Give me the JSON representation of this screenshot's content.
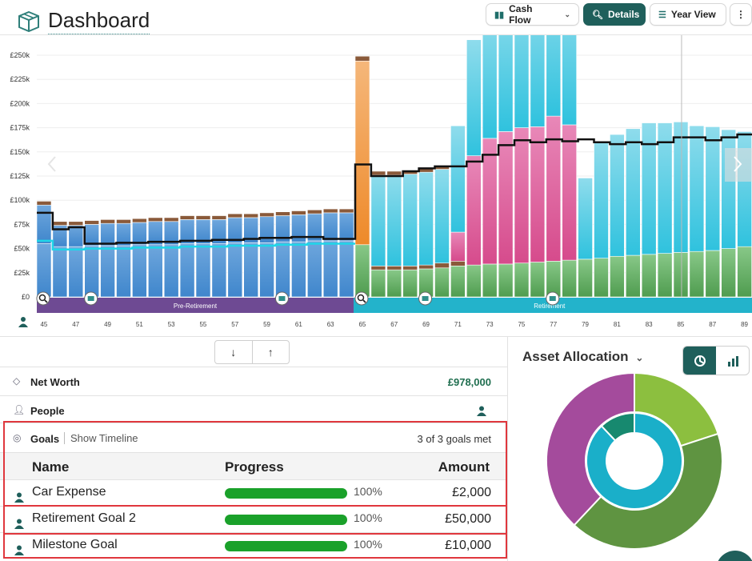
{
  "header": {
    "title": "Dashboard",
    "buttons": {
      "cash_flow": "Cash Flow",
      "details": "Details",
      "year_view": "Year View",
      "more": "⋮"
    }
  },
  "chart_data": {
    "type": "bar",
    "y_ticks": [
      "£0",
      "£25k",
      "£50k",
      "£75k",
      "£100k",
      "£125k",
      "£150k",
      "£175k",
      "£200k",
      "£225k",
      "£250k"
    ],
    "ylim": [
      0,
      250000
    ],
    "x_ticks": [
      "45",
      "47",
      "49",
      "51",
      "53",
      "55",
      "57",
      "59",
      "61",
      "63",
      "65",
      "67",
      "69",
      "71",
      "73",
      "75",
      "77",
      "79",
      "81",
      "83",
      "85",
      "87",
      "89"
    ],
    "ages": [
      45,
      46,
      47,
      48,
      49,
      50,
      51,
      52,
      53,
      54,
      55,
      56,
      57,
      58,
      59,
      60,
      61,
      62,
      63,
      64,
      65,
      66,
      67,
      68,
      69,
      70,
      71,
      72,
      73,
      74,
      75,
      76,
      77,
      78,
      79,
      80,
      81,
      82,
      83,
      84,
      85,
      86,
      87,
      88,
      89
    ],
    "series": [
      {
        "values": [
          55,
          52,
          52,
          53,
          53,
          53,
          54,
          54,
          54,
          55,
          55,
          55,
          56,
          56,
          56,
          57,
          57,
          58,
          58,
          58,
          54,
          28,
          28,
          28,
          29,
          30,
          32,
          33,
          34,
          34,
          35,
          36,
          37,
          38,
          39,
          40,
          42,
          43,
          44,
          45,
          46,
          47,
          48,
          50,
          52
        ]
      },
      {
        "values": [
          40,
          22,
          22,
          22,
          23,
          23,
          23,
          24,
          24,
          25,
          25,
          25,
          26,
          26,
          27,
          27,
          28,
          28,
          29,
          29,
          190,
          94,
          94,
          95,
          96,
          97,
          110,
          120,
          130,
          135,
          135,
          135,
          135,
          135,
          84,
          120,
          126,
          131,
          136,
          135,
          135,
          130,
          128,
          123,
          119
        ]
      },
      {
        "values": [
          0,
          0,
          0,
          0,
          0,
          0,
          0,
          0,
          0,
          0,
          0,
          0,
          0,
          0,
          0,
          0,
          0,
          0,
          0,
          0,
          0,
          4,
          4,
          4,
          4,
          5,
          5,
          0,
          0,
          0,
          0,
          0,
          0,
          0,
          0,
          0,
          0,
          0,
          0,
          0,
          0,
          0,
          0,
          0,
          0
        ]
      },
      {
        "values": [
          0,
          0,
          0,
          0,
          0,
          0,
          0,
          0,
          0,
          0,
          0,
          0,
          0,
          0,
          0,
          0,
          0,
          0,
          0,
          0,
          0,
          0,
          0,
          0,
          0,
          0,
          30,
          113,
          130,
          137,
          140,
          140,
          150,
          140,
          0,
          0,
          0,
          0,
          0,
          0,
          0,
          0,
          0,
          0,
          0
        ]
      },
      {
        "values": [
          4,
          4,
          4,
          4,
          4,
          4,
          4,
          4,
          4,
          4,
          4,
          4,
          4,
          4,
          4,
          4,
          4,
          4,
          4,
          4,
          5,
          4,
          4,
          4,
          4,
          4,
          0,
          0,
          0,
          0,
          0,
          0,
          0,
          0,
          0,
          0,
          0,
          0,
          0,
          0,
          0,
          0,
          0,
          0,
          0
        ]
      },
      {
        "values": [
          87,
          70,
          72,
          55,
          55,
          56,
          56,
          57,
          57,
          58,
          58,
          59,
          59,
          60,
          61,
          61,
          62,
          62,
          60,
          60,
          137,
          125,
          125,
          130,
          133,
          135,
          135,
          140,
          147,
          157,
          162,
          160,
          163,
          161,
          163,
          160,
          158,
          160,
          158,
          160,
          165,
          165,
          162,
          165,
          168
        ]
      }
    ],
    "phases": [
      "Pre-Retirement",
      "Retirement"
    ],
    "colors": {
      "blue": "#3f86cc",
      "blue_light": "#6fa7dd",
      "cyan": "#2fc2de",
      "cyan_light": "#8fdcec",
      "green": "#4f9c4f",
      "green_light": "#88c888",
      "pink": "#d64b8c",
      "pink_light": "#e888b8",
      "orange": "#ee8a2a",
      "brown": "#8a5a3a",
      "networth_line": "#111111",
      "target_line": "#1fd6e8",
      "pre_retirement_band": "#6e4a93",
      "retirement_band": "#23b3cb"
    }
  },
  "sort": {
    "down": "↓",
    "up": "↑"
  },
  "net_worth": {
    "label": "Net Worth",
    "value": "£978,000"
  },
  "people": {
    "label": "People"
  },
  "goals": {
    "label": "Goals",
    "show_timeline": "Show Timeline",
    "count": "3 of 3 goals met",
    "columns": {
      "name": "Name",
      "progress": "Progress",
      "amount": "Amount"
    },
    "rows": [
      {
        "name": "Car Expense",
        "percent": "100%",
        "progress": 1.0,
        "amount": "£2,000"
      },
      {
        "name": "Retirement Goal 2",
        "percent": "100%",
        "progress": 1.0,
        "amount": "£50,000"
      },
      {
        "name": "Milestone Goal",
        "percent": "100%",
        "progress": 1.0,
        "amount": "£10,000"
      }
    ]
  },
  "asset_allocation": {
    "title": "Asset Allocation",
    "outer": [
      {
        "value": 20,
        "color": "#8cbf3f"
      },
      {
        "value": 42,
        "color": "#5f9441"
      },
      {
        "value": 38,
        "color": "#a44b9c"
      }
    ],
    "inner": [
      {
        "value": 88,
        "color": "#1aafc9"
      },
      {
        "value": 12,
        "color": "#17896f"
      }
    ]
  }
}
